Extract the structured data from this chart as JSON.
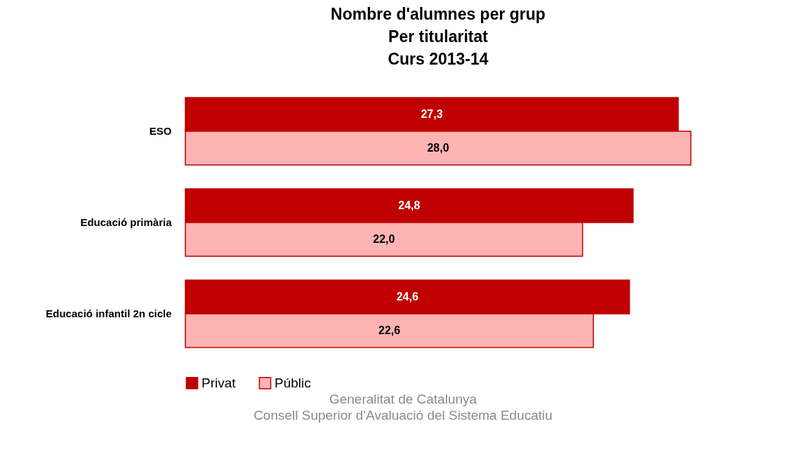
{
  "chart_data": {
    "type": "bar",
    "orientation": "horizontal",
    "title": "Nombre d'alumnes per grup\nPer titularitat\nCurs 2013-14",
    "categories": [
      "ESO",
      "Educació primària",
      "Educació infantil  2n cicle"
    ],
    "series": [
      {
        "name": "Privat",
        "color": "#c00000",
        "values": [
          27.3,
          24.8,
          24.6
        ],
        "value_labels": [
          "27,3",
          "24,8",
          "24,6"
        ]
      },
      {
        "name": "Públic",
        "color": "#ffb3b3",
        "values": [
          28.0,
          22.0,
          22.6
        ],
        "value_labels": [
          "28,0",
          "22,0",
          "22,6"
        ]
      }
    ],
    "legend": "bottom",
    "grid": false,
    "annotations": [
      "Generalitat de Catalunya",
      "Consell Superior d'Avaluació del Sistema Educatiu"
    ]
  }
}
